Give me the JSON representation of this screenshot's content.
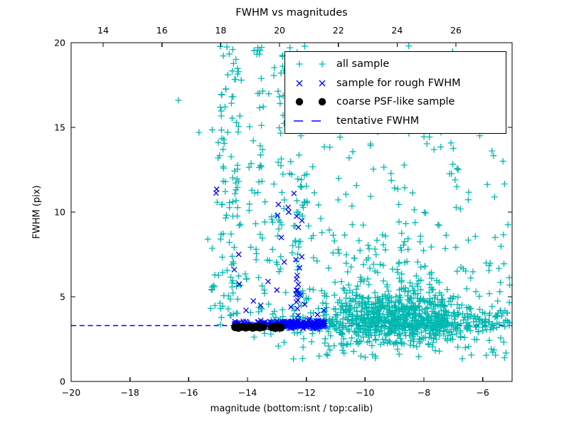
{
  "chart_data": {
    "type": "scatter",
    "title": "FWHM vs magnitudes",
    "xlabel": "magnitude (bottom:isnt / top:calib)",
    "ylabel": "FWHM (pix)",
    "xlim": [
      -20,
      -5
    ],
    "ylim": [
      0,
      20
    ],
    "top_xlim": [
      12.91,
      27.91
    ],
    "grid": false,
    "x_ticks_bottom": {
      "values": [
        -20,
        -18,
        -16,
        -14,
        -12,
        -10,
        -8,
        -6
      ],
      "labels": [
        "−20",
        "−18",
        "−16",
        "−14",
        "−12",
        "−10",
        "−8",
        "−6"
      ]
    },
    "x_ticks_top": {
      "values": [
        14,
        16,
        18,
        20,
        22,
        24,
        26
      ],
      "labels": [
        "14",
        "16",
        "18",
        "20",
        "22",
        "24",
        "26"
      ]
    },
    "y_ticks": {
      "values": [
        0,
        5,
        10,
        15,
        20
      ],
      "labels": [
        "0",
        "5",
        "10",
        "15",
        "20"
      ]
    },
    "legend": {
      "position": "upper right",
      "entries": [
        {
          "label": "all sample",
          "marker": "plus",
          "color": "#00b8b0"
        },
        {
          "label": "sample for rough FWHM",
          "marker": "x",
          "color": "#0000ff"
        },
        {
          "label": "coarse PSF-like sample",
          "marker": "dot",
          "color": "#000000"
        },
        {
          "label": "tentative FWHM",
          "marker": "dash",
          "color": "#0000ff"
        }
      ]
    },
    "tentative_fwhm": 3.3,
    "seed": 7,
    "series": [
      {
        "name": "all sample",
        "marker": "plus",
        "color": "#00b8b0",
        "marker_size": 9,
        "clusters": [
          {
            "n": 650,
            "x": {
              "dist": "gauss",
              "mu": -8.8,
              "sigma": 1.2,
              "min": -12.3,
              "max": -5.05
            },
            "y": {
              "dist": "gauss",
              "mu": 3.9,
              "sigma": 0.85,
              "min": 2.1,
              "max": 6.8
            }
          },
          {
            "n": 260,
            "x": {
              "dist": "uniform",
              "min": -13.2,
              "max": -5.05
            },
            "y": {
              "dist": "gauss",
              "mu": 3.45,
              "sigma": 0.33,
              "min": 2.5,
              "max": 4.5
            }
          },
          {
            "n": 170,
            "x": {
              "dist": "uniform",
              "min": -15.3,
              "max": -5.05
            },
            "y": {
              "dist": "uniform",
              "min": 2.2,
              "max": 9.0
            }
          },
          {
            "n": 160,
            "x": {
              "dist": "uniform",
              "min": -15.1,
              "max": -5.05
            },
            "y": {
              "dist": "uniform",
              "min": 9.0,
              "max": 19.9
            }
          },
          {
            "n": 26,
            "x": {
              "dist": "gauss",
              "mu": -14.85,
              "sigma": 0.07,
              "min": -15.1,
              "max": -14.6
            },
            "y": {
              "dist": "uniform",
              "min": 3.6,
              "max": 19.8
            }
          },
          {
            "n": 26,
            "x": {
              "dist": "gauss",
              "mu": -14.55,
              "sigma": 0.07,
              "min": -14.8,
              "max": -14.3
            },
            "y": {
              "dist": "uniform",
              "min": 3.6,
              "max": 19.8
            }
          },
          {
            "n": 26,
            "x": {
              "dist": "gauss",
              "mu": -14.35,
              "sigma": 0.07,
              "min": -14.6,
              "max": -14.1
            },
            "y": {
              "dist": "uniform",
              "min": 3.6,
              "max": 19.8
            }
          },
          {
            "n": 26,
            "x": {
              "dist": "gauss",
              "mu": -13.55,
              "sigma": 0.07,
              "min": -13.8,
              "max": -13.3
            },
            "y": {
              "dist": "uniform",
              "min": 3.6,
              "max": 19.8
            }
          },
          {
            "n": 26,
            "x": {
              "dist": "gauss",
              "mu": -12.85,
              "sigma": 0.07,
              "min": -13.1,
              "max": -12.6
            },
            "y": {
              "dist": "uniform",
              "min": 3.6,
              "max": 19.8
            }
          },
          {
            "n": 26,
            "x": {
              "dist": "gauss",
              "mu": -12.3,
              "sigma": 0.07,
              "min": -12.55,
              "max": -12.05
            },
            "y": {
              "dist": "uniform",
              "min": 3.6,
              "max": 19.8
            }
          },
          {
            "n": 26,
            "x": {
              "dist": "gauss",
              "mu": -12.05,
              "sigma": 0.07,
              "min": -12.3,
              "max": -11.8
            },
            "y": {
              "dist": "uniform",
              "min": 3.6,
              "max": 19.8
            }
          },
          {
            "n": 55,
            "x": {
              "dist": "uniform",
              "min": -13.0,
              "max": -5.2
            },
            "y": {
              "dist": "uniform",
              "min": 1.3,
              "max": 2.5
            }
          },
          {
            "n": 45,
            "x": {
              "dist": "gauss",
              "mu": -9.3,
              "sigma": 1.0,
              "min": -11.5,
              "max": -6.0
            },
            "y": {
              "dist": "uniform",
              "min": 6.5,
              "max": 9.5
            }
          }
        ],
        "points": [
          [
            -16.35,
            16.6
          ],
          [
            -15.65,
            14.7
          ],
          [
            -15.2,
            14.85
          ],
          [
            -14.7,
            19.75
          ],
          [
            -14.5,
            19.6
          ],
          [
            -15.35,
            8.4
          ],
          [
            -15.0,
            13.2
          ]
        ]
      },
      {
        "name": "sample for rough FWHM",
        "marker": "x",
        "color": "#0000ff",
        "marker_size": 9,
        "clusters": [
          {
            "n": 170,
            "x": {
              "dist": "uniform",
              "min": -14.45,
              "max": -11.35
            },
            "y": {
              "dist": "gauss",
              "mu": 3.38,
              "sigma": 0.11,
              "min": 3.05,
              "max": 3.75
            }
          },
          {
            "n": 60,
            "x": {
              "dist": "uniform",
              "min": -12.75,
              "max": -11.6
            },
            "y": {
              "dist": "gauss",
              "mu": 3.35,
              "sigma": 0.13,
              "min": 3.0,
              "max": 3.8
            }
          },
          {
            "n": 13,
            "x": {
              "dist": "gauss",
              "mu": -12.32,
              "sigma": 0.08,
              "min": -12.6,
              "max": -12.05
            },
            "y": {
              "dist": "uniform",
              "min": 3.7,
              "max": 7.7
            }
          }
        ],
        "points": [
          [
            -15.05,
            11.35
          ],
          [
            -15.07,
            11.12
          ],
          [
            -12.42,
            11.1
          ],
          [
            -12.95,
            10.45
          ],
          [
            -12.62,
            10.28
          ],
          [
            -12.6,
            10.0
          ],
          [
            -12.33,
            9.75
          ],
          [
            -12.98,
            9.8
          ],
          [
            -12.15,
            9.5
          ],
          [
            -12.27,
            9.1
          ],
          [
            -12.75,
            7.05
          ],
          [
            -13.3,
            5.9
          ],
          [
            -13.0,
            5.4
          ],
          [
            -12.3,
            5.4
          ],
          [
            -12.2,
            5.1
          ],
          [
            -13.8,
            4.75
          ],
          [
            -14.3,
            7.5
          ],
          [
            -14.45,
            6.6
          ],
          [
            -11.4,
            4.2
          ],
          [
            -11.62,
            3.95
          ],
          [
            -12.05,
            4.55
          ],
          [
            -12.52,
            4.4
          ],
          [
            -13.55,
            4.5
          ],
          [
            -14.05,
            4.2
          ],
          [
            -14.28,
            5.75
          ],
          [
            -12.85,
            8.5
          ]
        ]
      },
      {
        "name": "coarse PSF-like sample",
        "marker": "dot",
        "color": "#000000",
        "marker_size": 11,
        "clusters": [],
        "points": [
          [
            -14.42,
            3.2
          ],
          [
            -14.31,
            3.16
          ],
          [
            -14.19,
            3.22
          ],
          [
            -14.06,
            3.18
          ],
          [
            -13.94,
            3.22
          ],
          [
            -13.82,
            3.17
          ],
          [
            -13.7,
            3.22
          ],
          [
            -13.58,
            3.18
          ],
          [
            -13.47,
            3.22
          ],
          [
            -13.17,
            3.2
          ],
          [
            -13.05,
            3.16
          ],
          [
            -12.94,
            3.21
          ],
          [
            -12.86,
            3.18
          ],
          [
            -14.36,
            3.24
          ],
          [
            -13.63,
            3.25
          ],
          [
            -13.0,
            3.24
          ]
        ]
      }
    ]
  },
  "colors": {
    "background": "#ffffff",
    "axes": "#000000",
    "text": "#000000",
    "all_sample": "#00b8b0",
    "rough_fwhm": "#0000ff",
    "psf_like": "#000000",
    "tentative_line": "#0000ff"
  }
}
